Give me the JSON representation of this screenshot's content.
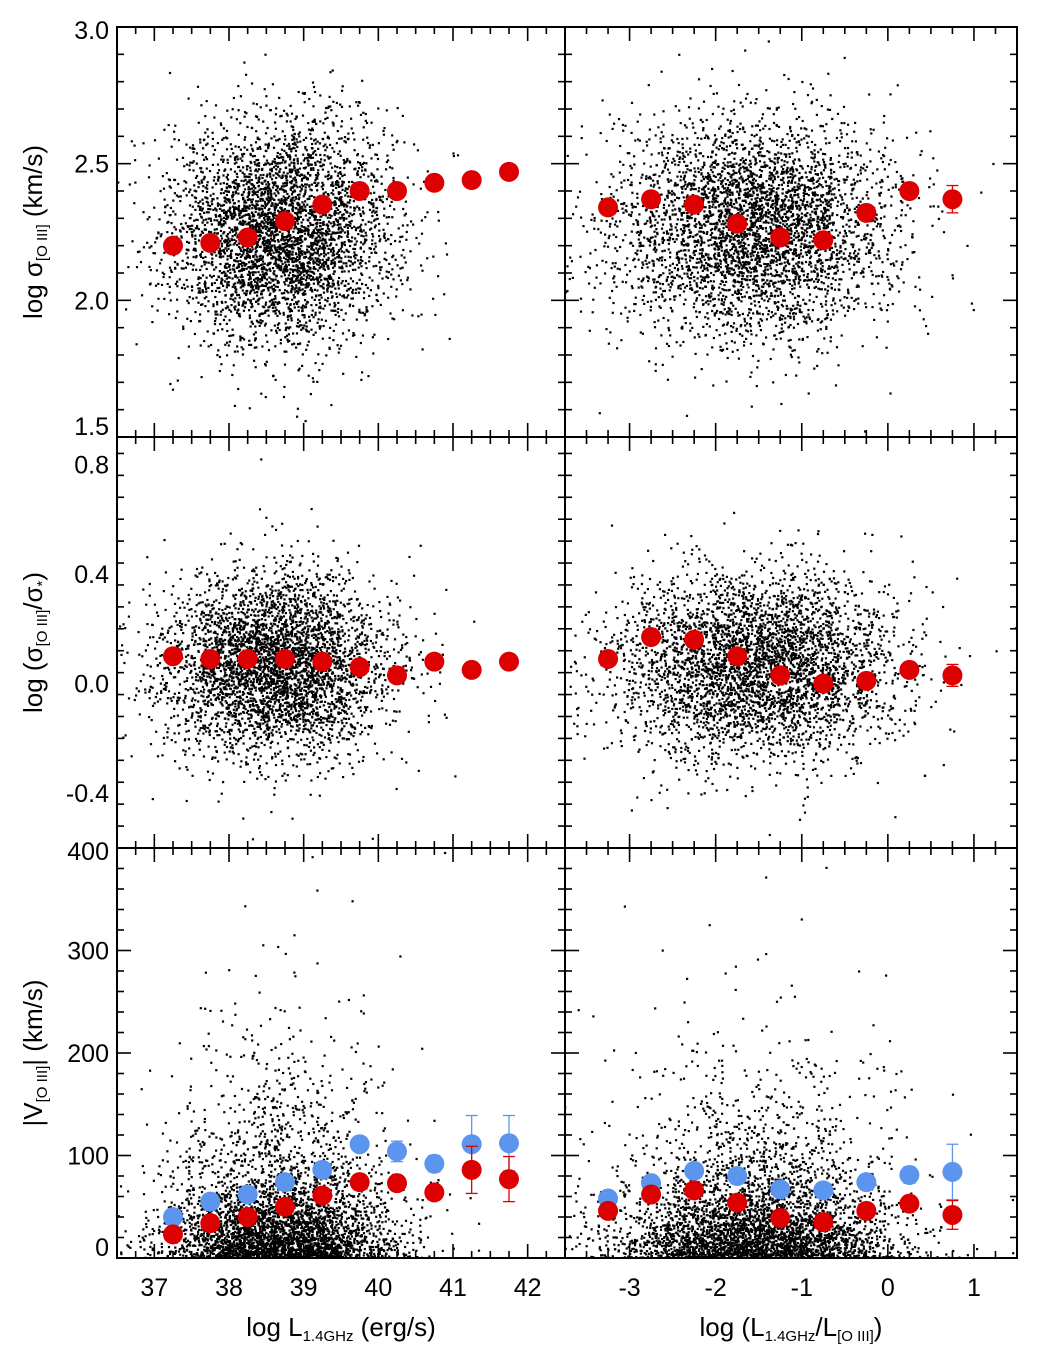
{
  "chart_data": [
    {
      "panel": "top-left",
      "type": "scatter",
      "xlim": [
        36.5,
        42.5
      ],
      "ylim": [
        1.5,
        3.0
      ],
      "yticks": [
        1.5,
        2.0,
        2.5,
        3.0
      ],
      "ytick_labels": [
        "1.5",
        "2.0",
        "2.5",
        "3.0"
      ],
      "xlabel": "",
      "ylabel": "log σ[O III] (km/s)",
      "ylabel_main": "log σ",
      "ylabel_sub": "[O III]",
      "ylabel_unit": " (km/s)",
      "cloud": {
        "x_center": 38.7,
        "x_spread": 0.75,
        "y_center": 2.25,
        "y_spread": 0.2,
        "count": 4000
      },
      "series": [
        {
          "name": "median",
          "color": "#dd0000",
          "x": [
            37.25,
            37.75,
            38.25,
            38.75,
            39.25,
            39.75,
            40.25,
            40.75,
            41.25,
            41.75
          ],
          "y": [
            2.2,
            2.21,
            2.23,
            2.29,
            2.35,
            2.4,
            2.4,
            2.43,
            2.44,
            2.47
          ],
          "err": [
            0.01,
            0.01,
            0.01,
            0.01,
            0.01,
            0.01,
            0.01,
            0.01,
            0.01,
            0.01
          ]
        }
      ]
    },
    {
      "panel": "top-right",
      "type": "scatter",
      "xlim": [
        -3.75,
        1.5
      ],
      "ylim": [
        1.5,
        3.0
      ],
      "xlabel": "",
      "ylabel": "",
      "cloud": {
        "x_center": -1.6,
        "x_spread": 0.8,
        "y_center": 2.27,
        "y_spread": 0.2,
        "count": 4000
      },
      "series": [
        {
          "name": "median",
          "color": "#dd0000",
          "x": [
            -3.25,
            -2.75,
            -2.25,
            -1.75,
            -1.25,
            -0.75,
            -0.25,
            0.25,
            0.75
          ],
          "y": [
            2.34,
            2.37,
            2.35,
            2.28,
            2.23,
            2.22,
            2.32,
            2.4,
            2.37
          ],
          "err": [
            0.01,
            0.01,
            0.01,
            0.01,
            0.01,
            0.01,
            0.01,
            0.02,
            0.05
          ]
        }
      ]
    },
    {
      "panel": "middle-left",
      "type": "scatter",
      "xlim": [
        36.5,
        42.5
      ],
      "ylim": [
        -0.6,
        0.9
      ],
      "yticks": [
        -0.4,
        0.0,
        0.4,
        0.8
      ],
      "ytick_labels": [
        "-0.4",
        "0.0",
        "0.4",
        "0.8"
      ],
      "xlabel": "",
      "ylabel": "log (σ[O III]/σ*)",
      "ylabel_main": "log (σ",
      "ylabel_sub": "[O III]",
      "ylabel_mid": "/σ",
      "ylabel_sub2": "*",
      "ylabel_end": ")",
      "cloud": {
        "x_center": 38.6,
        "x_spread": 0.75,
        "y_center": 0.07,
        "y_spread": 0.17,
        "count": 4000
      },
      "series": [
        {
          "name": "median",
          "color": "#dd0000",
          "x": [
            37.25,
            37.75,
            38.25,
            38.75,
            39.25,
            39.75,
            40.25,
            40.75,
            41.25,
            41.75
          ],
          "y": [
            0.1,
            0.09,
            0.09,
            0.09,
            0.08,
            0.06,
            0.03,
            0.08,
            0.05,
            0.08
          ],
          "err": [
            0.01,
            0.01,
            0.01,
            0.01,
            0.01,
            0.01,
            0.01,
            0.01,
            0.01,
            0.01
          ]
        }
      ]
    },
    {
      "panel": "middle-right",
      "type": "scatter",
      "xlim": [
        -3.75,
        1.5
      ],
      "ylim": [
        -0.6,
        0.9
      ],
      "xlabel": "",
      "ylabel": "",
      "cloud": {
        "x_center": -1.55,
        "x_spread": 0.8,
        "y_center": 0.07,
        "y_spread": 0.17,
        "count": 4000
      },
      "series": [
        {
          "name": "median",
          "color": "#dd0000",
          "x": [
            -3.25,
            -2.75,
            -2.25,
            -1.75,
            -1.25,
            -0.75,
            -0.25,
            0.25,
            0.75
          ],
          "y": [
            0.09,
            0.17,
            0.16,
            0.1,
            0.03,
            0.0,
            0.01,
            0.05,
            0.03
          ],
          "err": [
            0.01,
            0.01,
            0.01,
            0.01,
            0.01,
            0.01,
            0.01,
            0.02,
            0.04
          ]
        }
      ]
    },
    {
      "panel": "bottom-left",
      "type": "scatter",
      "xlim": [
        36.5,
        42.5
      ],
      "ylim": [
        0,
        400
      ],
      "xticks": [
        37,
        38,
        39,
        40,
        41,
        42
      ],
      "xtick_labels": [
        "37",
        "38",
        "39",
        "40",
        "41",
        "42"
      ],
      "yticks": [
        0,
        100,
        200,
        300,
        400
      ],
      "ytick_labels": [
        "0",
        "100",
        "200",
        "300",
        "400"
      ],
      "xlabel": "log L1.4GHz (erg/s)",
      "xlabel_main": "log L",
      "xlabel_sub": "1.4GHz",
      "xlabel_unit": " (erg/s)",
      "ylabel": "|V[O III]| (km/s)",
      "ylabel_main": "|V",
      "ylabel_sub": "[O III]",
      "ylabel_unit": "| (km/s)",
      "cloud": {
        "x_center": 38.7,
        "x_spread": 0.75,
        "y_scale": 45,
        "count": 4000
      },
      "series": [
        {
          "name": "blue",
          "color": "#5b95ee",
          "x": [
            37.25,
            37.75,
            38.25,
            38.75,
            39.25,
            39.75,
            40.25,
            40.75,
            41.25,
            41.75
          ],
          "y": [
            40,
            55,
            62,
            74,
            86,
            111,
            104,
            92,
            111,
            112
          ],
          "err": [
            2,
            2,
            2,
            2,
            3,
            5,
            10,
            8,
            28,
            27
          ]
        },
        {
          "name": "red",
          "color": "#dd0000",
          "x": [
            37.25,
            37.75,
            38.25,
            38.75,
            39.25,
            39.75,
            40.25,
            40.75,
            41.25,
            41.75
          ],
          "y": [
            23,
            34,
            40,
            50,
            61,
            74,
            73,
            64,
            86,
            77
          ],
          "err": [
            2,
            2,
            2,
            2,
            3,
            4,
            5,
            6,
            23,
            22
          ]
        }
      ]
    },
    {
      "panel": "bottom-right",
      "type": "scatter",
      "xlim": [
        -3.75,
        1.5
      ],
      "ylim": [
        0,
        400
      ],
      "xticks": [
        -3,
        -2,
        -1,
        0,
        1
      ],
      "xtick_labels": [
        "-3",
        "-2",
        "-1",
        "0",
        "1"
      ],
      "xlabel": "log (L1.4GHz/L[O III])",
      "xlabel_main": "log (L",
      "xlabel_sub": "1.4GHz",
      "xlabel_mid": "/L",
      "xlabel_sub2": "[O III]",
      "xlabel_end": ")",
      "ylabel": "",
      "cloud": {
        "x_center": -1.55,
        "x_spread": 0.8,
        "y_scale": 45,
        "count": 4000
      },
      "series": [
        {
          "name": "blue",
          "color": "#5b95ee",
          "x": [
            -3.25,
            -2.75,
            -2.25,
            -1.75,
            -1.25,
            -0.75,
            -0.25,
            0.25,
            0.75
          ],
          "y": [
            58,
            73,
            85,
            80,
            67,
            66,
            74,
            81,
            84
          ],
          "err": [
            2,
            2,
            2,
            2,
            2,
            3,
            4,
            8,
            27
          ]
        },
        {
          "name": "red",
          "color": "#dd0000",
          "x": [
            -3.25,
            -2.75,
            -2.25,
            -1.75,
            -1.25,
            -0.75,
            -0.25,
            0.25,
            0.75
          ],
          "y": [
            46,
            62,
            66,
            54,
            39,
            35,
            46,
            53,
            42
          ],
          "err": [
            2,
            2,
            2,
            2,
            2,
            3,
            3,
            5,
            14
          ]
        }
      ]
    }
  ]
}
